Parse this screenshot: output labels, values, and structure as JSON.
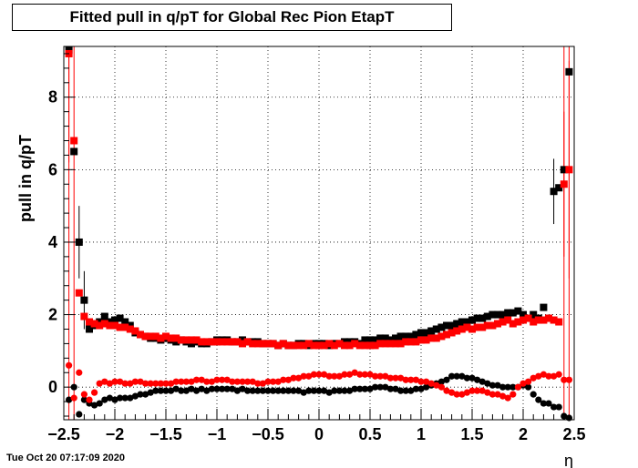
{
  "title": "Fitted pull in q/pT for Global Rec Pion EtapT",
  "footer": "Tue Oct 20 07:17:09 2020",
  "chart_data": {
    "type": "scatter",
    "title": "Fitted pull in q/pT for Global Rec Pion EtapT",
    "xlabel": "η",
    "ylabel": "pull in q/pT",
    "xlim": [
      -2.5,
      2.5
    ],
    "ylim": [
      -0.9,
      9.4
    ],
    "grid": true,
    "x_ticks": [
      "−2.5",
      "−2",
      "−1.5",
      "−1",
      "−0.5",
      "0",
      "0.5",
      "1",
      "1.5",
      "2",
      "2.5"
    ],
    "x_tick_values": [
      -2.5,
      -2,
      -1.5,
      -1,
      -0.5,
      0,
      0.5,
      1,
      1.5,
      2,
      2.5
    ],
    "y_ticks": [
      "0",
      "2",
      "4",
      "6",
      "8"
    ],
    "y_tick_values": [
      0,
      2,
      4,
      6,
      8
    ],
    "series": [
      {
        "color": "#000000",
        "marker": "square",
        "x": [
          -2.45,
          -2.4,
          -2.35,
          -2.3,
          -2.25,
          -2.2,
          -2.15,
          -2.1,
          -2.05,
          -2.0,
          -1.95,
          -1.9,
          -1.85,
          -1.8,
          -1.75,
          -1.7,
          -1.65,
          -1.6,
          -1.55,
          -1.5,
          -1.45,
          -1.4,
          -1.35,
          -1.3,
          -1.25,
          -1.2,
          -1.15,
          -1.1,
          -1.05,
          -1.0,
          -0.95,
          -0.9,
          -0.85,
          -0.8,
          -0.75,
          -0.7,
          -0.65,
          -0.6,
          -0.55,
          -0.5,
          -0.45,
          -0.4,
          -0.35,
          -0.3,
          -0.25,
          -0.2,
          -0.15,
          -0.1,
          -0.05,
          0.0,
          0.05,
          0.1,
          0.15,
          0.2,
          0.25,
          0.3,
          0.35,
          0.4,
          0.45,
          0.5,
          0.55,
          0.6,
          0.65,
          0.7,
          0.75,
          0.8,
          0.85,
          0.9,
          0.95,
          1.0,
          1.05,
          1.1,
          1.15,
          1.2,
          1.25,
          1.3,
          1.35,
          1.4,
          1.45,
          1.5,
          1.55,
          1.6,
          1.65,
          1.7,
          1.75,
          1.8,
          1.85,
          1.9,
          1.95,
          2.0,
          2.05,
          2.1,
          2.15,
          2.2,
          2.25,
          2.3,
          2.35,
          2.4,
          2.45
        ],
        "y": [
          9.3,
          6.5,
          4.0,
          2.4,
          1.6,
          1.7,
          1.8,
          1.95,
          1.8,
          1.85,
          1.9,
          1.8,
          1.7,
          1.5,
          1.45,
          1.4,
          1.35,
          1.35,
          1.3,
          1.35,
          1.3,
          1.25,
          1.3,
          1.25,
          1.2,
          1.25,
          1.2,
          1.2,
          1.25,
          1.3,
          1.3,
          1.3,
          1.25,
          1.25,
          1.3,
          1.25,
          1.25,
          1.25,
          1.2,
          1.2,
          1.2,
          1.15,
          1.2,
          1.15,
          1.15,
          1.2,
          1.2,
          1.15,
          1.2,
          1.2,
          1.2,
          1.15,
          1.2,
          1.2,
          1.25,
          1.25,
          1.25,
          1.2,
          1.3,
          1.3,
          1.3,
          1.35,
          1.35,
          1.3,
          1.35,
          1.4,
          1.4,
          1.4,
          1.45,
          1.5,
          1.5,
          1.55,
          1.6,
          1.65,
          1.7,
          1.7,
          1.75,
          1.8,
          1.8,
          1.85,
          1.9,
          1.9,
          1.95,
          2.0,
          2.0,
          2.0,
          2.05,
          2.05,
          2.1,
          2.0,
          1.9,
          2.0,
          1.9,
          2.2,
          1.9,
          5.4,
          5.5,
          6.0,
          8.7
        ],
        "y_err_tall": {
          "-2.35": 1.0,
          "-2.3": 0.8,
          "2.3": 0.9
        }
      },
      {
        "color": "#ff0000",
        "marker": "square",
        "x": [
          -2.45,
          -2.4,
          -2.35,
          -2.3,
          -2.25,
          -2.2,
          -2.15,
          -2.1,
          -2.05,
          -2.0,
          -1.95,
          -1.9,
          -1.85,
          -1.8,
          -1.75,
          -1.7,
          -1.65,
          -1.6,
          -1.55,
          -1.5,
          -1.45,
          -1.4,
          -1.35,
          -1.3,
          -1.25,
          -1.2,
          -1.15,
          -1.1,
          -1.05,
          -1.0,
          -0.95,
          -0.9,
          -0.85,
          -0.8,
          -0.75,
          -0.7,
          -0.65,
          -0.6,
          -0.55,
          -0.5,
          -0.45,
          -0.4,
          -0.35,
          -0.3,
          -0.25,
          -0.2,
          -0.15,
          -0.1,
          -0.05,
          0.0,
          0.05,
          0.1,
          0.15,
          0.2,
          0.25,
          0.3,
          0.35,
          0.4,
          0.45,
          0.5,
          0.55,
          0.6,
          0.65,
          0.7,
          0.75,
          0.8,
          0.85,
          0.9,
          0.95,
          1.0,
          1.05,
          1.1,
          1.15,
          1.2,
          1.25,
          1.3,
          1.35,
          1.4,
          1.45,
          1.5,
          1.55,
          1.6,
          1.65,
          1.7,
          1.75,
          1.8,
          1.85,
          1.9,
          1.95,
          2.0,
          2.05,
          2.1,
          2.15,
          2.2,
          2.25,
          2.3,
          2.35,
          2.4,
          2.45
        ],
        "y": [
          9.2,
          6.8,
          2.6,
          1.95,
          1.8,
          1.75,
          1.7,
          1.75,
          1.7,
          1.7,
          1.65,
          1.65,
          1.6,
          1.55,
          1.45,
          1.4,
          1.4,
          1.4,
          1.35,
          1.4,
          1.35,
          1.35,
          1.3,
          1.3,
          1.3,
          1.3,
          1.25,
          1.25,
          1.25,
          1.25,
          1.25,
          1.25,
          1.25,
          1.25,
          1.2,
          1.25,
          1.2,
          1.2,
          1.2,
          1.2,
          1.2,
          1.15,
          1.2,
          1.15,
          1.15,
          1.15,
          1.15,
          1.2,
          1.15,
          1.15,
          1.15,
          1.2,
          1.15,
          1.2,
          1.15,
          1.15,
          1.2,
          1.15,
          1.15,
          1.15,
          1.15,
          1.2,
          1.2,
          1.2,
          1.2,
          1.2,
          1.25,
          1.25,
          1.25,
          1.3,
          1.3,
          1.35,
          1.35,
          1.4,
          1.45,
          1.5,
          1.55,
          1.6,
          1.65,
          1.6,
          1.65,
          1.65,
          1.7,
          1.7,
          1.75,
          1.8,
          1.85,
          1.75,
          1.8,
          1.85,
          1.9,
          1.8,
          1.85,
          1.85,
          1.9,
          1.85,
          1.8,
          5.6,
          6.0
        ],
        "y_err_tall": {
          "-2.45": 3.0,
          "2.4": 2.0,
          "2.45": 3.0
        }
      },
      {
        "color": "#000000",
        "marker": "circle",
        "x": [
          -2.45,
          -2.4,
          -2.35,
          -2.3,
          -2.25,
          -2.2,
          -2.15,
          -2.1,
          -2.05,
          -2.0,
          -1.95,
          -1.9,
          -1.85,
          -1.8,
          -1.75,
          -1.7,
          -1.65,
          -1.6,
          -1.55,
          -1.5,
          -1.45,
          -1.4,
          -1.35,
          -1.3,
          -1.25,
          -1.2,
          -1.15,
          -1.1,
          -1.05,
          -1.0,
          -0.95,
          -0.9,
          -0.85,
          -0.8,
          -0.75,
          -0.7,
          -0.65,
          -0.6,
          -0.55,
          -0.5,
          -0.45,
          -0.4,
          -0.35,
          -0.3,
          -0.25,
          -0.2,
          -0.15,
          -0.1,
          -0.05,
          0.0,
          0.05,
          0.1,
          0.15,
          0.2,
          0.25,
          0.3,
          0.35,
          0.4,
          0.45,
          0.5,
          0.55,
          0.6,
          0.65,
          0.7,
          0.75,
          0.8,
          0.85,
          0.9,
          0.95,
          1.0,
          1.05,
          1.1,
          1.15,
          1.2,
          1.25,
          1.3,
          1.35,
          1.4,
          1.45,
          1.5,
          1.55,
          1.6,
          1.65,
          1.7,
          1.75,
          1.8,
          1.85,
          1.9,
          1.95,
          2.0,
          2.05,
          2.1,
          2.15,
          2.2,
          2.25,
          2.3,
          2.35,
          2.4,
          2.45
        ],
        "y": [
          -0.35,
          0.0,
          -0.75,
          -0.35,
          -0.45,
          -0.5,
          -0.45,
          -0.35,
          -0.3,
          -0.35,
          -0.3,
          -0.3,
          -0.3,
          -0.25,
          -0.2,
          -0.2,
          -0.15,
          -0.1,
          -0.1,
          -0.1,
          -0.1,
          -0.05,
          -0.1,
          -0.1,
          -0.05,
          -0.1,
          -0.05,
          -0.1,
          -0.05,
          -0.05,
          -0.05,
          -0.05,
          -0.05,
          -0.1,
          -0.05,
          -0.1,
          -0.1,
          -0.1,
          -0.1,
          -0.1,
          -0.1,
          -0.1,
          -0.1,
          -0.1,
          -0.1,
          -0.1,
          -0.15,
          -0.1,
          -0.1,
          -0.1,
          -0.1,
          -0.15,
          -0.1,
          -0.1,
          -0.1,
          -0.1,
          -0.05,
          -0.05,
          -0.05,
          -0.05,
          0.0,
          0.0,
          0.0,
          -0.05,
          -0.05,
          -0.1,
          -0.1,
          -0.1,
          -0.05,
          -0.05,
          0.0,
          0.05,
          0.1,
          0.15,
          0.2,
          0.3,
          0.3,
          0.3,
          0.25,
          0.25,
          0.2,
          0.15,
          0.1,
          0.05,
          0.05,
          0.0,
          0.0,
          0.0,
          0.0,
          0.05,
          0.0,
          -0.2,
          -0.35,
          -0.45,
          -0.45,
          -0.55,
          -0.55,
          -0.8,
          -0.85
        ]
      },
      {
        "color": "#ff0000",
        "marker": "circle",
        "x": [
          -2.45,
          -2.4,
          -2.35,
          -2.3,
          -2.25,
          -2.2,
          -2.15,
          -2.1,
          -2.05,
          -2.0,
          -1.95,
          -1.9,
          -1.85,
          -1.8,
          -1.75,
          -1.7,
          -1.65,
          -1.6,
          -1.55,
          -1.5,
          -1.45,
          -1.4,
          -1.35,
          -1.3,
          -1.25,
          -1.2,
          -1.15,
          -1.1,
          -1.05,
          -1.0,
          -0.95,
          -0.9,
          -0.85,
          -0.8,
          -0.75,
          -0.7,
          -0.65,
          -0.6,
          -0.55,
          -0.5,
          -0.45,
          -0.4,
          -0.35,
          -0.3,
          -0.25,
          -0.2,
          -0.15,
          -0.1,
          -0.05,
          0.0,
          0.05,
          0.1,
          0.15,
          0.2,
          0.25,
          0.3,
          0.35,
          0.4,
          0.45,
          0.5,
          0.55,
          0.6,
          0.65,
          0.7,
          0.75,
          0.8,
          0.85,
          0.9,
          0.95,
          1.0,
          1.05,
          1.1,
          1.15,
          1.2,
          1.25,
          1.3,
          1.35,
          1.4,
          1.45,
          1.5,
          1.55,
          1.6,
          1.65,
          1.7,
          1.75,
          1.8,
          1.85,
          1.9,
          1.95,
          2.0,
          2.05,
          2.1,
          2.15,
          2.2,
          2.25,
          2.3,
          2.35,
          2.4,
          2.45
        ],
        "y": [
          0.6,
          -0.3,
          0.4,
          -0.2,
          -0.35,
          -0.15,
          0.1,
          0.15,
          0.1,
          0.15,
          0.15,
          0.1,
          0.1,
          0.15,
          0.15,
          0.1,
          0.1,
          0.1,
          0.1,
          0.1,
          0.1,
          0.15,
          0.15,
          0.15,
          0.15,
          0.2,
          0.2,
          0.15,
          0.15,
          0.2,
          0.2,
          0.2,
          0.15,
          0.15,
          0.15,
          0.15,
          0.15,
          0.1,
          0.1,
          0.15,
          0.15,
          0.15,
          0.2,
          0.2,
          0.25,
          0.25,
          0.3,
          0.3,
          0.35,
          0.35,
          0.35,
          0.3,
          0.3,
          0.3,
          0.35,
          0.35,
          0.4,
          0.35,
          0.35,
          0.35,
          0.3,
          0.3,
          0.3,
          0.25,
          0.25,
          0.25,
          0.2,
          0.2,
          0.2,
          0.15,
          0.15,
          0.1,
          0.05,
          0.0,
          -0.1,
          -0.15,
          -0.2,
          -0.2,
          -0.15,
          -0.1,
          -0.1,
          -0.1,
          -0.15,
          -0.2,
          -0.2,
          -0.25,
          -0.3,
          -0.2,
          0.0,
          0.1,
          0.15,
          0.25,
          0.3,
          0.35,
          0.3,
          0.3,
          0.35,
          0.2,
          0.2
        ]
      }
    ]
  }
}
